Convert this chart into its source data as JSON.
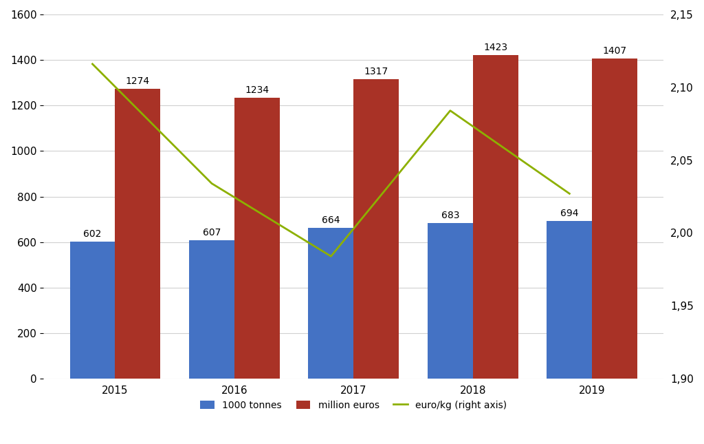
{
  "years": [
    2015,
    2016,
    2017,
    2018,
    2019
  ],
  "tonnes": [
    602,
    607,
    664,
    683,
    694
  ],
  "euros": [
    1274,
    1234,
    1317,
    1423,
    1407
  ],
  "euro_per_kg": [
    2.116,
    2.034,
    1.984,
    2.084,
    2.027
  ],
  "bar_color_blue": "#4472C4",
  "bar_color_red": "#A93226",
  "line_color": "#8DB000",
  "left_ylim": [
    0,
    1600
  ],
  "right_ylim": [
    1.9,
    2.15
  ],
  "left_yticks": [
    0,
    200,
    400,
    600,
    800,
    1000,
    1200,
    1400,
    1600
  ],
  "right_yticks": [
    1.9,
    1.95,
    2.0,
    2.05,
    2.1,
    2.15
  ],
  "legend_labels": [
    "1000 tonnes",
    "million euros",
    "euro/kg (right axis)"
  ],
  "background_color": "#ffffff",
  "grid_color": "#d0d0d0",
  "bar_width": 0.38,
  "label_fontsize": 10,
  "tick_fontsize": 11,
  "legend_fontsize": 10,
  "line_width": 2.0
}
